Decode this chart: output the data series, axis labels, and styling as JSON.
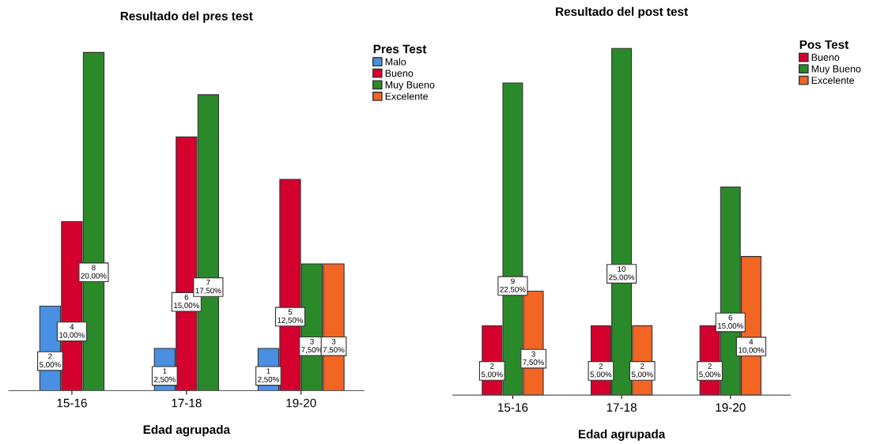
{
  "chart_data": [
    {
      "type": "bar",
      "title": "Resultado del pres test",
      "xlabel": "Edad agrupada",
      "legend_title": "Pres Test",
      "legend": "top right",
      "grid": false,
      "tick_labels": "x",
      "categories": [
        "15-16",
        "17-18",
        "19-20"
      ],
      "series": [
        {
          "name": "Malo",
          "color": "#4a90e2",
          "values": [
            2,
            1,
            1
          ],
          "value_labels": [
            "2\n5,00%",
            "1\n2,50%",
            "1\n2,50%"
          ]
        },
        {
          "name": "Bueno",
          "color": "#d4002e",
          "values": [
            4,
            6,
            5
          ],
          "value_labels": [
            "4\n10,00%",
            "6\n15,00%",
            "5\n12,50%"
          ]
        },
        {
          "name": "Muy Bueno",
          "color": "#2a8a2a",
          "values": [
            8,
            7,
            3
          ],
          "value_labels": [
            "8\n20,00%",
            "7\n17,50%",
            "3\n7,50%"
          ]
        },
        {
          "name": "Excelente",
          "color": "#f26522",
          "values": [
            null,
            null,
            3
          ],
          "value_labels": [
            null,
            null,
            "3\n7,50%"
          ]
        }
      ]
    },
    {
      "type": "bar",
      "title": "Resultado del post test",
      "xlabel": "Edad agrupada",
      "legend_title": "Pos Test",
      "legend": "top right",
      "grid": false,
      "tick_labels": "x",
      "categories": [
        "15-16",
        "17-18",
        "19-20"
      ],
      "series": [
        {
          "name": "Bueno",
          "color": "#d4002e",
          "values": [
            2,
            2,
            2
          ],
          "value_labels": [
            "2\n5,00%",
            "2\n5,00%",
            "2\n5,00%"
          ]
        },
        {
          "name": "Muy Bueno",
          "color": "#2a8a2a",
          "values": [
            9,
            10,
            6
          ],
          "value_labels": [
            "9\n22,50%",
            "10\n25,00%",
            "6\n15,00%"
          ]
        },
        {
          "name": "Excelente",
          "color": "#f26522",
          "values": [
            3,
            2,
            4
          ],
          "value_labels": [
            "3\n7,50%",
            "2\n5,00%",
            "4\n10,00%"
          ]
        }
      ]
    }
  ]
}
